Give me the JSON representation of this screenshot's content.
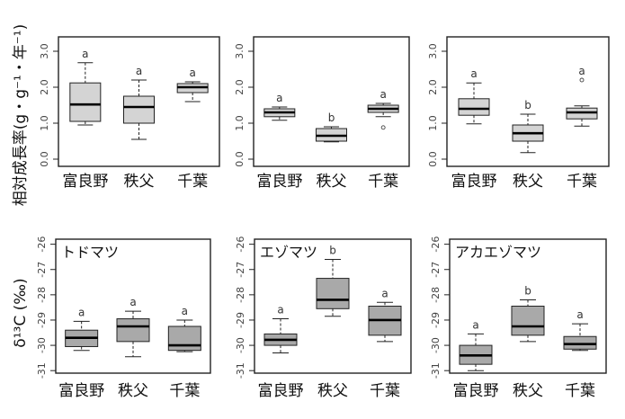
{
  "colors": {
    "box_row1": "#d4d4d4",
    "box_row2": "#a9a9a9",
    "frame": "#222222",
    "median": "#000000"
  },
  "y_labels": {
    "row1": "相対成長率(g・g⁻¹・年⁻¹)",
    "row2": "δ¹³C (‰)"
  },
  "chart_data": [
    {
      "type": "box",
      "title": "",
      "ylim": [
        -0.2,
        3.4
      ],
      "yticks": [
        "0.0",
        "1.0",
        "2.0",
        "3.0"
      ],
      "categories": [
        "富良野",
        "秩父",
        "千葉"
      ],
      "series": [
        {
          "min": 0.95,
          "q1": 1.05,
          "median": 1.52,
          "q3": 2.12,
          "max": 2.68,
          "label": "a"
        },
        {
          "min": 0.55,
          "q1": 1.0,
          "median": 1.45,
          "q3": 1.75,
          "max": 2.2,
          "label": "a"
        },
        {
          "min": 1.6,
          "q1": 1.85,
          "median": 2.0,
          "q3": 2.1,
          "max": 2.15,
          "label": "a"
        }
      ]
    },
    {
      "type": "box",
      "title": "",
      "ylim": [
        -0.2,
        3.4
      ],
      "yticks": [
        "0.0",
        "1.0",
        "2.0",
        "3.0"
      ],
      "categories": [
        "富良野",
        "秩父",
        "千葉"
      ],
      "series": [
        {
          "min": 1.08,
          "q1": 1.18,
          "median": 1.3,
          "q3": 1.4,
          "max": 1.45,
          "label": "a"
        },
        {
          "min": 0.48,
          "q1": 0.5,
          "median": 0.65,
          "q3": 0.85,
          "max": 0.9,
          "label": "b"
        },
        {
          "min": 1.18,
          "q1": 1.3,
          "median": 1.4,
          "q3": 1.5,
          "max": 1.55,
          "outliers": [
            0.88
          ],
          "label": "a"
        }
      ]
    },
    {
      "type": "box",
      "title": "",
      "ylim": [
        -0.2,
        3.4
      ],
      "yticks": [
        "0.0",
        "1.0",
        "2.0",
        "3.0"
      ],
      "categories": [
        "富良野",
        "秩父",
        "千葉"
      ],
      "series": [
        {
          "min": 0.98,
          "q1": 1.22,
          "median": 1.4,
          "q3": 1.68,
          "max": 2.12,
          "label": "a"
        },
        {
          "min": 0.18,
          "q1": 0.5,
          "median": 0.72,
          "q3": 0.95,
          "max": 1.25,
          "label": "b"
        },
        {
          "min": 0.92,
          "q1": 1.12,
          "median": 1.3,
          "q3": 1.42,
          "max": 1.48,
          "outliers": [
            2.2
          ],
          "label": "a"
        }
      ]
    },
    {
      "type": "box",
      "title": "トドマツ",
      "ylim": [
        -31.1,
        -25.8
      ],
      "yticks": [
        "-31",
        "-30",
        "-29",
        "-28",
        "-27",
        "-26"
      ],
      "categories": [
        "富良野",
        "秩父",
        "千葉"
      ],
      "series": [
        {
          "min": -30.2,
          "q1": -30.05,
          "median": -29.7,
          "q3": -29.4,
          "max": -29.05,
          "label": "a"
        },
        {
          "min": -30.45,
          "q1": -29.85,
          "median": -29.25,
          "q3": -28.95,
          "max": -28.65,
          "label": "a"
        },
        {
          "min": -30.25,
          "q1": -30.2,
          "median": -30.0,
          "q3": -29.25,
          "max": -29.0,
          "label": "a"
        }
      ]
    },
    {
      "type": "box",
      "title": "エゾマツ",
      "ylim": [
        -31.1,
        -25.8
      ],
      "yticks": [
        "-31",
        "-30",
        "-29",
        "-28",
        "-27",
        "-26"
      ],
      "categories": [
        "富良野",
        "秩父",
        "千葉"
      ],
      "series": [
        {
          "min": -30.3,
          "q1": -30.0,
          "median": -29.78,
          "q3": -29.55,
          "max": -28.95,
          "label": "a"
        },
        {
          "min": -28.85,
          "q1": -28.55,
          "median": -28.2,
          "q3": -27.35,
          "max": -26.6,
          "label": "b"
        },
        {
          "min": -29.85,
          "q1": -29.6,
          "median": -29.0,
          "q3": -28.45,
          "max": -28.3,
          "label": "a"
        }
      ]
    },
    {
      "type": "box",
      "title": "アカエゾマツ",
      "ylim": [
        -31.1,
        -25.8
      ],
      "yticks": [
        "-31",
        "-30",
        "-29",
        "-28",
        "-27",
        "-26"
      ],
      "categories": [
        "富良野",
        "秩父",
        "千葉"
      ],
      "series": [
        {
          "min": -31.0,
          "q1": -30.75,
          "median": -30.4,
          "q3": -30.0,
          "max": -29.55,
          "label": "a"
        },
        {
          "min": -29.85,
          "q1": -29.6,
          "median": -29.25,
          "q3": -28.45,
          "max": -28.2,
          "label": "b"
        },
        {
          "min": -30.2,
          "q1": -30.15,
          "median": -29.95,
          "q3": -29.65,
          "max": -29.15,
          "label": "a"
        }
      ]
    }
  ]
}
